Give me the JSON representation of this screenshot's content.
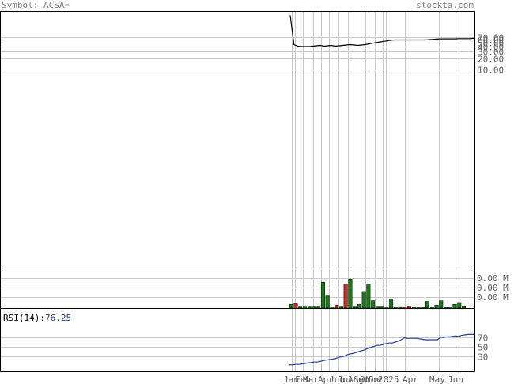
{
  "header": {
    "symbol_label": "Symbol: ACSAF",
    "site": "stockta.com"
  },
  "rsi_label": {
    "name": "RSI(14):",
    "value": "76.25"
  },
  "chart_data": {
    "type": "line",
    "price_panel": {
      "y_axis": "log",
      "ticks": [
        "70.00",
        "60.00",
        "50.00",
        "40.00",
        "30.00",
        "20.00",
        "10.00"
      ],
      "tick_values": [
        70,
        60,
        50,
        40,
        30,
        20,
        10
      ],
      "close": [
        260,
        45,
        41,
        40,
        40,
        40,
        41,
        42,
        43,
        41,
        42,
        43,
        41,
        42,
        43,
        44,
        45,
        44,
        43,
        44,
        45,
        47,
        49,
        51,
        53,
        55,
        57,
        59,
        60,
        60,
        60,
        60,
        60,
        60,
        60,
        60,
        60,
        61,
        62,
        63,
        64,
        64,
        64,
        64,
        64,
        65,
        65,
        65,
        65,
        66
      ],
      "color": "#000000"
    },
    "volume_panel": {
      "ticks": [
        "0.00 M",
        "0.00 M",
        "0.00 M"
      ],
      "bars": [
        {
          "v": 0.1,
          "c": "g"
        },
        {
          "v": 0.12,
          "c": "r"
        },
        {
          "v": 0.05,
          "c": "g"
        },
        {
          "v": 0.05,
          "c": "g"
        },
        {
          "v": 0.05,
          "c": "g"
        },
        {
          "v": 0.05,
          "c": "g"
        },
        {
          "v": 0.05,
          "c": "g"
        },
        {
          "v": 0.7,
          "c": "g"
        },
        {
          "v": 0.35,
          "c": "g"
        },
        {
          "v": 0.02,
          "c": "g"
        },
        {
          "v": 0.08,
          "c": "r"
        },
        {
          "v": 0.05,
          "c": "g"
        },
        {
          "v": 0.65,
          "c": "r"
        },
        {
          "v": 0.78,
          "c": "g"
        },
        {
          "v": 0.05,
          "c": "g"
        },
        {
          "v": 0.1,
          "c": "g"
        },
        {
          "v": 0.45,
          "c": "g"
        },
        {
          "v": 0.65,
          "c": "g"
        },
        {
          "v": 0.2,
          "c": "g"
        },
        {
          "v": 0.05,
          "c": "g"
        },
        {
          "v": 0.05,
          "c": "g"
        },
        {
          "v": 0.03,
          "c": "g"
        },
        {
          "v": 0.25,
          "c": "g"
        },
        {
          "v": 0.02,
          "c": "g"
        },
        {
          "v": 0.04,
          "c": "g"
        },
        {
          "v": 0.02,
          "c": "r"
        },
        {
          "v": 0.05,
          "c": "r"
        },
        {
          "v": 0.02,
          "c": "g"
        },
        {
          "v": 0.02,
          "c": "g"
        },
        {
          "v": 0.02,
          "c": "g"
        },
        {
          "v": 0.18,
          "c": "g"
        },
        {
          "v": 0.02,
          "c": "g"
        },
        {
          "v": 0.08,
          "c": "g"
        },
        {
          "v": 0.2,
          "c": "g"
        },
        {
          "v": 0.02,
          "c": "g"
        },
        {
          "v": 0.02,
          "c": "g"
        },
        {
          "v": 0.1,
          "c": "g"
        },
        {
          "v": 0.15,
          "c": "g"
        },
        {
          "v": 0.06,
          "c": "g"
        }
      ],
      "green": "#1a7a1a",
      "red": "#cc2222"
    },
    "rsi_panel": {
      "ticks": [
        "70",
        "50",
        "30"
      ],
      "tick_values": [
        70,
        50,
        30
      ],
      "values": [
        12,
        12,
        13,
        13,
        14,
        15,
        16,
        17,
        18,
        18,
        19,
        21,
        22,
        23,
        24,
        25,
        27,
        29,
        30,
        33,
        35,
        36,
        38,
        40,
        42,
        44,
        47,
        49,
        51,
        53,
        53,
        55,
        57,
        58,
        58,
        60,
        62,
        65,
        69,
        68,
        68,
        68,
        68,
        67,
        66,
        65,
        65,
        65,
        65,
        65,
        70,
        70,
        71,
        71,
        72,
        73,
        72,
        74,
        75,
        76,
        76,
        76
      ],
      "color": "#1f3f9f"
    },
    "x_axis": {
      "labels": [
        "Jan",
        "Feb",
        "Mar",
        "Apr",
        "Jun",
        "Jul",
        "Aug",
        "Sep",
        "Oct",
        "Nov",
        "Dec",
        "2025",
        "Apr",
        "May",
        "Jun"
      ]
    },
    "grid": true
  }
}
